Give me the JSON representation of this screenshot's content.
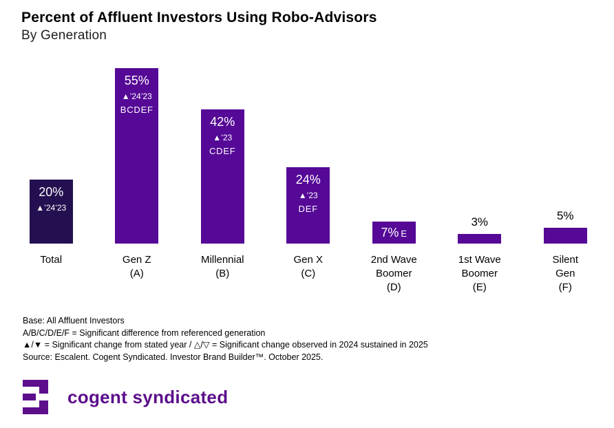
{
  "header": {
    "title": "Percent of Affluent Investors Using Robo-Advisors",
    "subtitle": "By Generation"
  },
  "colors": {
    "bar_purple": "#550996",
    "bar_dark": "#241050",
    "logo_purple": "#5C0E8B",
    "inside_label_text": "#ffffff",
    "outside_label_text": "#000000"
  },
  "chart_data": {
    "type": "bar",
    "title": "Percent of Affluent Investors Using Robo-Advisors",
    "subtitle": "By Generation",
    "unit": "percent",
    "ylim": [
      0,
      60
    ],
    "grid": false,
    "legend": "none",
    "categories": [
      "Total",
      "Gen Z (A)",
      "Millennial (B)",
      "Gen X (C)",
      "2nd Wave Boomer (D)",
      "1st Wave Boomer (E)",
      "Silent Gen (F)"
    ],
    "values": [
      20,
      55,
      42,
      24,
      7,
      3,
      5
    ],
    "bars": [
      {
        "id": "total",
        "category_lines": [
          "Total"
        ],
        "value": 20,
        "value_label": "20%",
        "change": "▲’24’23",
        "sig_letters": "",
        "inline_sig": "",
        "label_inside": true,
        "compact": false,
        "color": "#241050"
      },
      {
        "id": "gen-z",
        "category_lines": [
          "Gen Z",
          "(A)"
        ],
        "value": 55,
        "value_label": "55%",
        "change": "▲’24’23",
        "sig_letters": "BCDEF",
        "inline_sig": "",
        "label_inside": true,
        "compact": false,
        "color": "#550996"
      },
      {
        "id": "millennial",
        "category_lines": [
          "Millennial",
          "(B)"
        ],
        "value": 42,
        "value_label": "42%",
        "change": "▲’23",
        "sig_letters": "CDEF",
        "inline_sig": "",
        "label_inside": true,
        "compact": false,
        "color": "#550996"
      },
      {
        "id": "gen-x",
        "category_lines": [
          "Gen X",
          "(C)"
        ],
        "value": 24,
        "value_label": "24%",
        "change": "▲’23",
        "sig_letters": "DEF",
        "inline_sig": "",
        "label_inside": true,
        "compact": false,
        "color": "#550996"
      },
      {
        "id": "2nd-wave-boomer",
        "category_lines": [
          "2nd Wave",
          "Boomer",
          "(D)"
        ],
        "value": 7,
        "value_label": "7%",
        "change": "",
        "sig_letters": "",
        "inline_sig": "E",
        "label_inside": true,
        "compact": true,
        "color": "#550996"
      },
      {
        "id": "1st-wave-boomer",
        "category_lines": [
          "1st Wave",
          "Boomer",
          "(E)"
        ],
        "value": 3,
        "value_label": "3%",
        "change": "",
        "sig_letters": "",
        "inline_sig": "",
        "label_inside": false,
        "compact": false,
        "color": "#550996"
      },
      {
        "id": "silent-gen",
        "category_lines": [
          "Silent",
          "Gen",
          "(F)"
        ],
        "value": 5,
        "value_label": "5%",
        "change": "",
        "sig_letters": "",
        "inline_sig": "",
        "label_inside": false,
        "compact": false,
        "color": "#550996"
      }
    ]
  },
  "footnotes": {
    "lines": [
      "Base: All Affluent Investors",
      "A/B/C/D/E/F = Significant difference from referenced generation",
      "▲/▼ = Significant change from stated year / △/▽ = Significant change observed in 2024 sustained in 2025",
      "Source: Escalent. Cogent Syndicated. Investor Brand Builder™. October 2025."
    ]
  },
  "logo": {
    "text": "cogent syndicated",
    "mark": "cogent-e-mark"
  }
}
